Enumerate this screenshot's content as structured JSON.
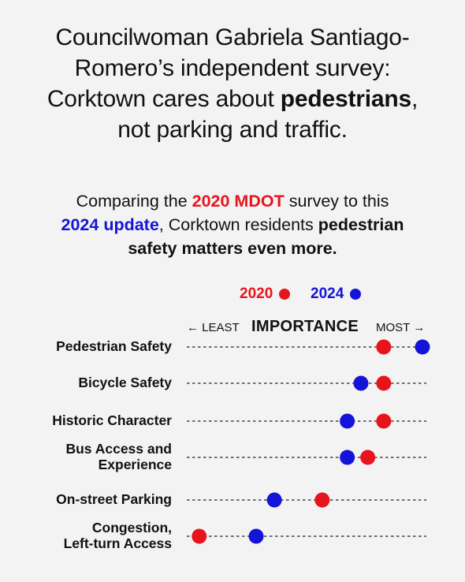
{
  "title": {
    "part1": "Councilwoman Gabriela Santiago-",
    "part2": "Romero’s independent survey:",
    "part3": "Corktown cares about ",
    "bold": "pedestrians",
    "part4": ",",
    "part5": "not parking and traffic."
  },
  "subtitle": {
    "part1": "Comparing the ",
    "red": "2020 MDOT",
    "part2": " survey to this",
    "blue": "2024 update",
    "part3": ", Corktown residents ",
    "bold1": "pedestrian",
    "bold2": "safety matters even more."
  },
  "legend": {
    "y2020": "2020",
    "y2024": "2024"
  },
  "axis": {
    "least": "← LEAST",
    "title": "IMPORTANCE",
    "most": "MOST →"
  },
  "colors": {
    "s2020": "#e8141c",
    "s2024": "#1414d8"
  },
  "chart_data": {
    "type": "scatter",
    "title": "",
    "xlabel": "IMPORTANCE",
    "xlim": [
      0,
      100
    ],
    "categories": [
      "Pedestrian Safety",
      "Bicycle Safety",
      "Historic Character",
      "Bus Access and Experience",
      "On-street Parking",
      "Congestion, Left-turn Access"
    ],
    "category_lines": [
      [
        "Pedestrian Safety"
      ],
      [
        "Bicycle Safety"
      ],
      [
        "Historic Character"
      ],
      [
        "Bus Access and",
        "Experience"
      ],
      [
        "On-street Parking"
      ],
      [
        "Congestion,",
        "Left-turn Access"
      ]
    ],
    "series": [
      {
        "name": "2020",
        "values": [
          83,
          83,
          83,
          76,
          56,
          2
        ]
      },
      {
        "name": "2024",
        "values": [
          100,
          73,
          67,
          67,
          35,
          27
        ]
      }
    ]
  }
}
